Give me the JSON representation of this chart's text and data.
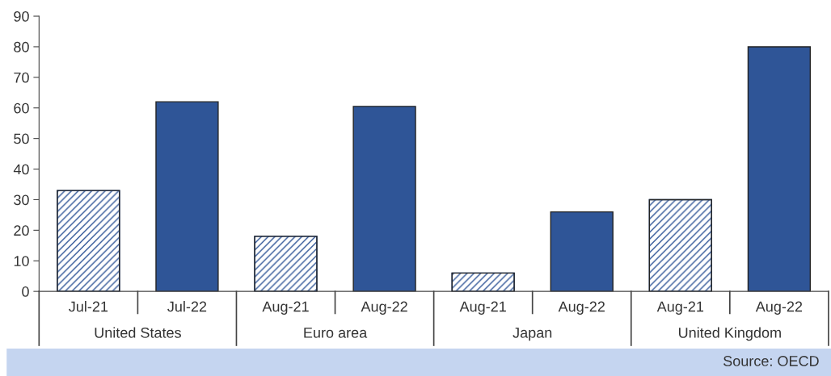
{
  "chart_data": {
    "type": "bar",
    "categories": [
      "Jul-21",
      "Jul-22",
      "Aug-21",
      "Aug-22",
      "Aug-21",
      "Aug-22",
      "Aug-21",
      "Aug-22"
    ],
    "series": [
      {
        "color": "#2f5597",
        "values": [
          33,
          null,
          18,
          null,
          6,
          null,
          30,
          null
        ]
      },
      {
        "color": "#2f5597",
        "values": [
          null,
          62,
          null,
          60.5,
          null,
          26,
          null,
          80
        ]
      }
    ],
    "ylim": [
      0,
      90
    ],
    "yticks": [
      0,
      10,
      20,
      30,
      40,
      50,
      60,
      70,
      80,
      90
    ],
    "annotations": [
      "United States",
      "Euro area",
      "Japan",
      "United Kingdom",
      "Source: OECD"
    ]
  }
}
